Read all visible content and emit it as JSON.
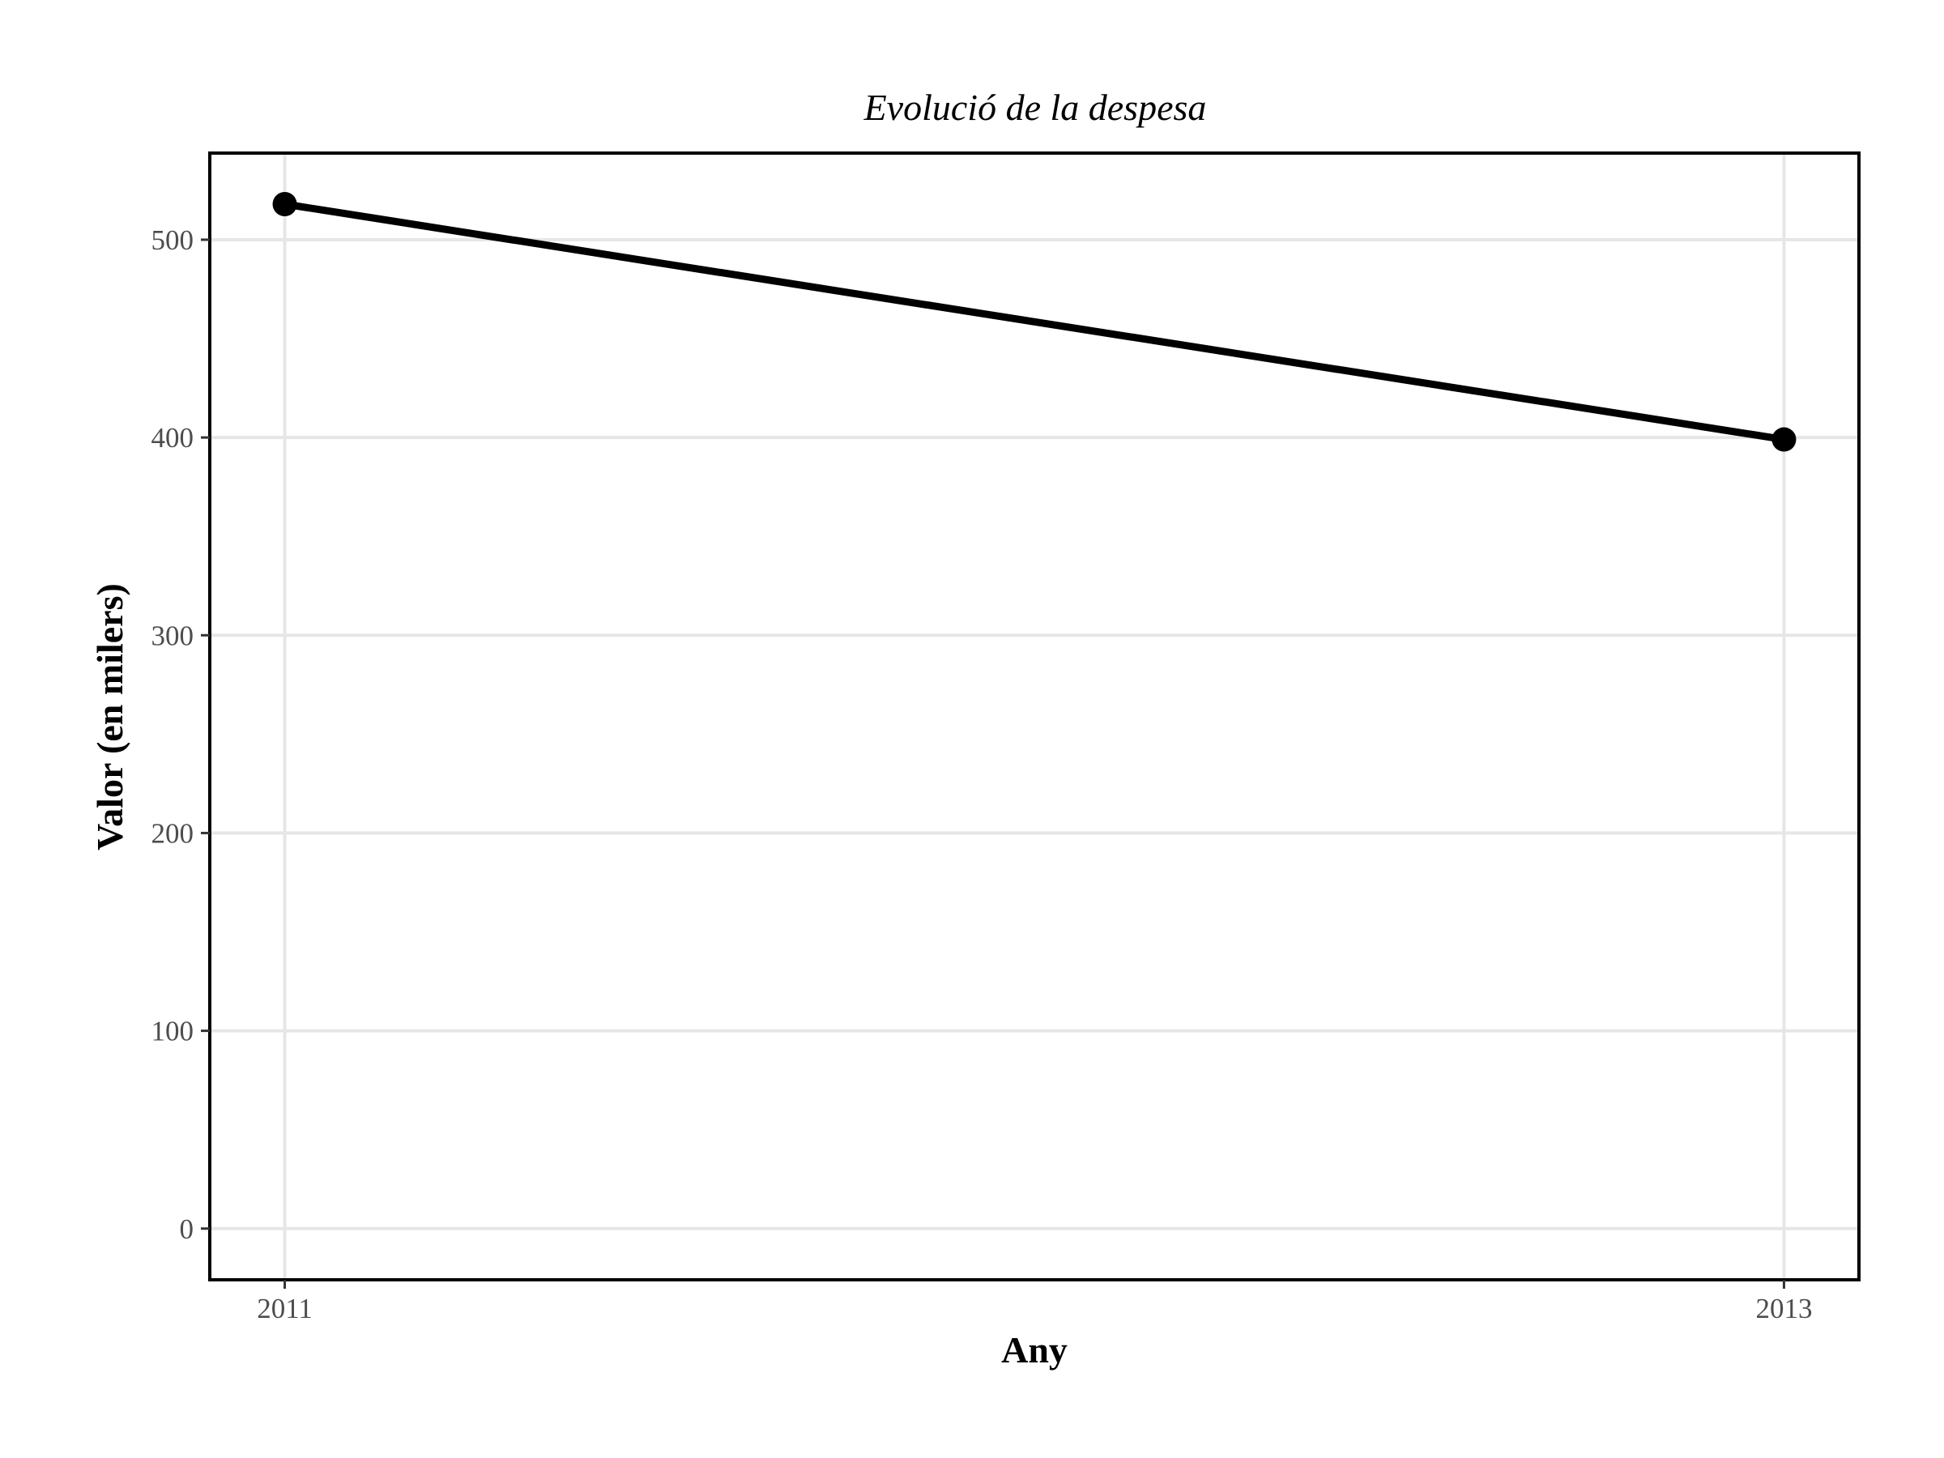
{
  "chart_data": {
    "type": "line",
    "title": "Evolució de la despesa",
    "xlabel": "Any",
    "ylabel": "Valor (en milers)",
    "x": [
      2011,
      2013
    ],
    "x_tick_labels": [
      "2011",
      "2013"
    ],
    "y_ticks": [
      0,
      100,
      200,
      300,
      400,
      500
    ],
    "y_tick_labels": [
      "0",
      "100",
      "200",
      "300",
      "400",
      "500"
    ],
    "xlim": [
      2010.9,
      2013.1
    ],
    "ylim": [
      -25.9,
      543.8
    ],
    "series": [
      {
        "values": [
          518,
          399
        ]
      }
    ],
    "grid": true,
    "legend": "none",
    "colors": {
      "line": "#000000",
      "point": "#000000",
      "grid": "#e6e6e6",
      "tick_text": "#4d4d4d"
    }
  }
}
